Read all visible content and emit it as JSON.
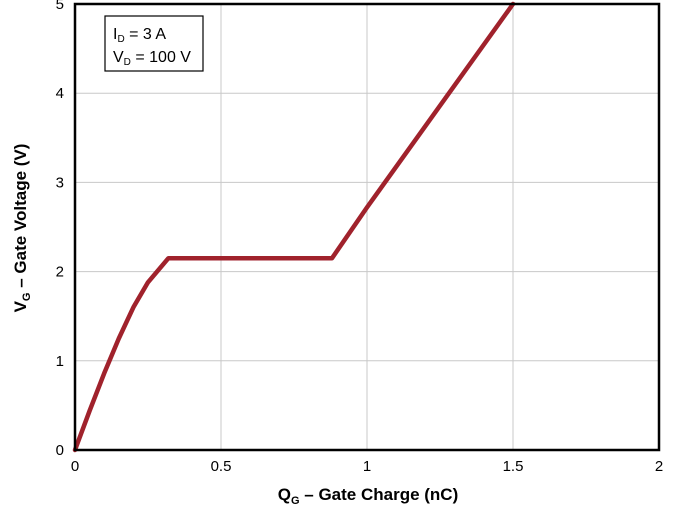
{
  "chart_data": {
    "type": "line",
    "xlabel": {
      "main": "Q",
      "sub": "G",
      "rest": " – Gate Charge (nC)"
    },
    "ylabel": {
      "main": "V",
      "sub": "G",
      "rest": " – Gate Voltage (V)"
    },
    "xlim": [
      0,
      2
    ],
    "ylim": [
      0,
      5
    ],
    "x_ticks": [
      0,
      0.5,
      1,
      1.5,
      2
    ],
    "x_tick_labels": [
      "0",
      "0.5",
      "1",
      "1.5",
      "2"
    ],
    "y_ticks": [
      0,
      1,
      2,
      3,
      4,
      5
    ],
    "y_tick_labels": [
      "0",
      "1",
      "2",
      "3",
      "4",
      "5"
    ],
    "grid": true,
    "legend": {
      "placement": "top-left",
      "lines": [
        {
          "main": "I",
          "sub": "D",
          "rest": " = 3 A"
        },
        {
          "main": "V",
          "sub": "D",
          "rest": " = 100 V"
        }
      ]
    },
    "series": [
      {
        "color": "#a0222c",
        "points": [
          [
            0,
            0
          ],
          [
            0.05,
            0.44
          ],
          [
            0.1,
            0.86
          ],
          [
            0.15,
            1.25
          ],
          [
            0.2,
            1.6
          ],
          [
            0.25,
            1.88
          ],
          [
            0.32,
            2.15
          ],
          [
            0.88,
            2.15
          ],
          [
            1.0,
            2.72
          ],
          [
            1.25,
            3.86
          ],
          [
            1.5,
            5.0
          ]
        ]
      }
    ]
  }
}
